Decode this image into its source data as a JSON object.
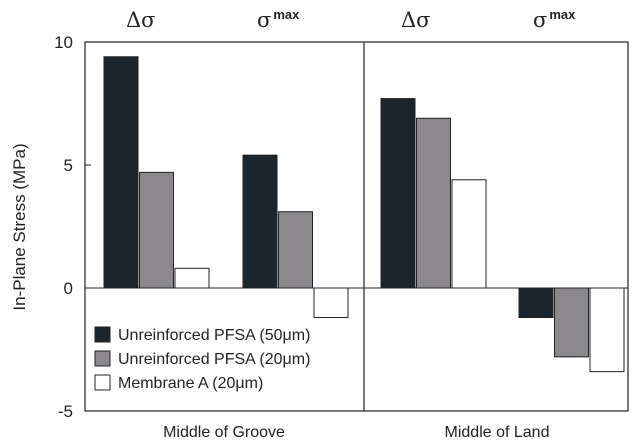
{
  "chart_data": {
    "type": "bar",
    "ylabel": "In-Plane Stress (MPa)",
    "ylim": [
      -5,
      10
    ],
    "yticks": [
      "10",
      "5",
      "0",
      "-5"
    ],
    "groups": [
      "Middle of Groove",
      "Middle of Land"
    ],
    "categories": [
      {
        "symbol": "Δσ",
        "sup": ""
      },
      {
        "symbol": "σ",
        "sup": "max"
      },
      {
        "symbol": "Δσ",
        "sup": ""
      },
      {
        "symbol": "σ",
        "sup": "max"
      }
    ],
    "series": [
      {
        "name": "Unreinforced PFSA (50μm)",
        "color": "#1a252e",
        "values": [
          9.4,
          5.4,
          7.7,
          -1.2
        ]
      },
      {
        "name": "Unreinforced PFSA (20μm)",
        "color": "#8a888d",
        "values": [
          4.7,
          3.1,
          6.9,
          -2.8
        ]
      },
      {
        "name": "Membrane A (20μm)",
        "color": "#ffffff",
        "values": [
          0.8,
          -1.2,
          4.4,
          -3.4
        ]
      }
    ],
    "legend_position": "bottom-left",
    "grid": false
  }
}
